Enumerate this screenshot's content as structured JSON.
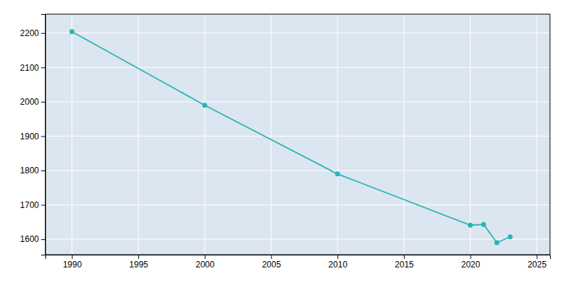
{
  "chart_data": {
    "type": "line",
    "x": [
      1990,
      2000,
      2010,
      2020,
      2021,
      2022,
      2023
    ],
    "values": [
      2204,
      1990,
      1790,
      1641,
      1643,
      1590,
      1607
    ],
    "color": "#2ab5b5",
    "marker": "circle",
    "xlim": [
      1988,
      2026
    ],
    "ylim": [
      1555,
      2255
    ],
    "xticks": [
      1990,
      1995,
      2000,
      2005,
      2010,
      2015,
      2020,
      2025
    ],
    "yticks": [
      1600,
      1700,
      1800,
      1900,
      2000,
      2100,
      2200
    ],
    "grid": true
  }
}
